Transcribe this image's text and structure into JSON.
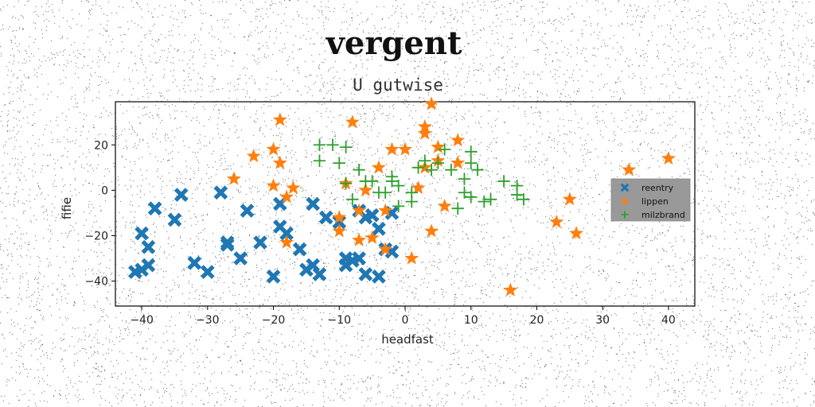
{
  "chart_data": {
    "type": "scatter",
    "title": "vergent",
    "subtitle": "U gutwise",
    "xlabel": "headfast",
    "ylabel": "fifie",
    "xlim": [
      -44,
      44
    ],
    "ylim": [
      -51,
      39
    ],
    "xticks": [
      -40,
      -30,
      -20,
      -10,
      0,
      10,
      20,
      30,
      40
    ],
    "yticks": [
      -40,
      -20,
      0,
      20
    ],
    "grid": false,
    "legend_position": "center-right",
    "series": [
      {
        "name": "reentry",
        "marker": "x",
        "color": "#1f77b4",
        "points": [
          [
            -41,
            -36
          ],
          [
            -40,
            -35
          ],
          [
            -39,
            -33
          ],
          [
            -40,
            -19
          ],
          [
            -39,
            -25
          ],
          [
            -38,
            -8
          ],
          [
            -35,
            -13
          ],
          [
            -34,
            -2
          ],
          [
            -32,
            -32
          ],
          [
            -30,
            -36
          ],
          [
            -28,
            -1
          ],
          [
            -27,
            -23
          ],
          [
            -27,
            -24
          ],
          [
            -25,
            -30
          ],
          [
            -24,
            -9
          ],
          [
            -22,
            -23
          ],
          [
            -20,
            -38
          ],
          [
            -19,
            -6
          ],
          [
            -19,
            -16
          ],
          [
            -18,
            -19
          ],
          [
            -16,
            -26
          ],
          [
            -15,
            -35
          ],
          [
            -14,
            -33
          ],
          [
            -13,
            -37
          ],
          [
            -14,
            -6
          ],
          [
            -12,
            -12
          ],
          [
            -10,
            -14
          ],
          [
            -9,
            -30
          ],
          [
            -9,
            -33
          ],
          [
            -8,
            -31
          ],
          [
            -7,
            -30
          ],
          [
            -7,
            -9
          ],
          [
            -6,
            -12
          ],
          [
            -5,
            -11
          ],
          [
            -6,
            -37
          ],
          [
            -4,
            -38
          ],
          [
            -4,
            -17
          ],
          [
            -3,
            -26
          ],
          [
            -2,
            -27
          ],
          [
            -2,
            -10
          ]
        ]
      },
      {
        "name": "lippen",
        "marker": "*",
        "color": "#ff7f0e",
        "points": [
          [
            -26,
            5
          ],
          [
            -23,
            15
          ],
          [
            -20,
            18
          ],
          [
            -20,
            2
          ],
          [
            -19,
            31
          ],
          [
            -19,
            12
          ],
          [
            -18,
            -3
          ],
          [
            -17,
            1
          ],
          [
            -18,
            -23
          ],
          [
            -10,
            -12
          ],
          [
            -10,
            -18
          ],
          [
            -9,
            3
          ],
          [
            -8,
            30
          ],
          [
            -7,
            -9
          ],
          [
            -7,
            -22
          ],
          [
            -6,
            0
          ],
          [
            -5,
            -21
          ],
          [
            -4,
            10
          ],
          [
            -3,
            -9
          ],
          [
            -3,
            -26
          ],
          [
            -2,
            18
          ],
          [
            0,
            18
          ],
          [
            1,
            -30
          ],
          [
            2,
            1
          ],
          [
            3,
            28
          ],
          [
            3,
            25
          ],
          [
            3,
            10
          ],
          [
            4,
            38
          ],
          [
            4,
            -18
          ],
          [
            5,
            19
          ],
          [
            5,
            13
          ],
          [
            6,
            -7
          ],
          [
            8,
            12
          ],
          [
            8,
            22
          ],
          [
            16,
            -44
          ],
          [
            23,
            -14
          ],
          [
            25,
            -4
          ],
          [
            26,
            -19
          ],
          [
            34,
            9
          ],
          [
            40,
            14
          ]
        ]
      },
      {
        "name": "milzbrand",
        "marker": "+",
        "color": "#2ca02c",
        "points": [
          [
            -13,
            20
          ],
          [
            -13,
            13
          ],
          [
            -11,
            20
          ],
          [
            -10,
            12
          ],
          [
            -9,
            19
          ],
          [
            -9,
            3
          ],
          [
            -8,
            -4
          ],
          [
            -7,
            9
          ],
          [
            -6,
            4
          ],
          [
            -5,
            4
          ],
          [
            -4,
            -1
          ],
          [
            -3,
            -1
          ],
          [
            -2,
            4
          ],
          [
            -2,
            6
          ],
          [
            -1,
            2
          ],
          [
            -1,
            -7
          ],
          [
            1,
            -5
          ],
          [
            1,
            -1
          ],
          [
            2,
            10
          ],
          [
            3,
            13
          ],
          [
            4,
            9
          ],
          [
            5,
            12
          ],
          [
            6,
            18
          ],
          [
            7,
            9
          ],
          [
            8,
            -8
          ],
          [
            9,
            -1
          ],
          [
            9,
            5
          ],
          [
            10,
            -3
          ],
          [
            10,
            12
          ],
          [
            10,
            17
          ],
          [
            11,
            9
          ],
          [
            12,
            -5
          ],
          [
            13,
            -4
          ],
          [
            15,
            4
          ],
          [
            17,
            2
          ],
          [
            17,
            -2
          ],
          [
            18,
            -4
          ]
        ]
      }
    ]
  }
}
